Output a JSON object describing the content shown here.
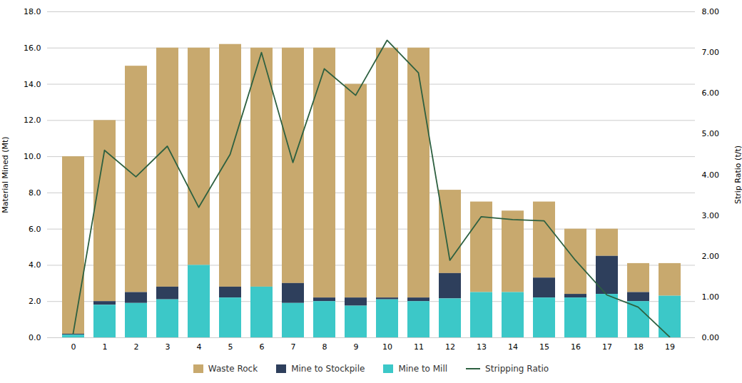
{
  "chart_data": {
    "type": "bar",
    "stacked": true,
    "grid": true,
    "legend": "bottom",
    "categories": [
      "0",
      "1",
      "2",
      "3",
      "4",
      "5",
      "6",
      "7",
      "8",
      "9",
      "10",
      "11",
      "12",
      "13",
      "14",
      "15",
      "16",
      "17",
      "18",
      "19"
    ],
    "ylabel": "Material Mined (Mt)",
    "y2label": "Strip Ratio (t/t)",
    "ylim": [
      0,
      18.0
    ],
    "yticks": [
      {
        "value": 0.0,
        "label": "0.0"
      },
      {
        "value": 2.0,
        "label": "2.0"
      },
      {
        "value": 4.0,
        "label": "4.0"
      },
      {
        "value": 6.0,
        "label": "6.0"
      },
      {
        "value": 8.0,
        "label": "8.0"
      },
      {
        "value": 10.0,
        "label": "10.0"
      },
      {
        "value": 12.0,
        "label": "12.0"
      },
      {
        "value": 14.0,
        "label": "14.0"
      },
      {
        "value": 16.0,
        "label": "16.0"
      },
      {
        "value": 18.0,
        "label": "18.0"
      }
    ],
    "y2lim": [
      0,
      8.0
    ],
    "y2ticks": [
      {
        "value": 0.0,
        "label": "0.00"
      },
      {
        "value": 1.0,
        "label": "1.00"
      },
      {
        "value": 2.0,
        "label": "2.00"
      },
      {
        "value": 3.0,
        "label": "3.00"
      },
      {
        "value": 4.0,
        "label": "4.00"
      },
      {
        "value": 5.0,
        "label": "5.00"
      },
      {
        "value": 6.0,
        "label": "6.00"
      },
      {
        "value": 7.0,
        "label": "7.00"
      },
      {
        "value": 8.0,
        "label": "8.00"
      }
    ],
    "series": [
      {
        "name": "Waste Rock",
        "color": "#C8A96E",
        "values": [
          9.8,
          10.0,
          12.5,
          13.2,
          12.0,
          13.4,
          13.2,
          13.0,
          13.8,
          11.8,
          13.8,
          13.8,
          4.6,
          5.0,
          4.5,
          4.2,
          3.6,
          1.5,
          1.6,
          1.8
        ]
      },
      {
        "name": "Mine to Stockpile",
        "color": "#2E3F5C",
        "values": [
          0.05,
          0.2,
          0.6,
          0.7,
          0.0,
          0.6,
          0.0,
          1.1,
          0.2,
          0.45,
          0.1,
          0.2,
          1.4,
          0.0,
          0.0,
          1.1,
          0.2,
          2.1,
          0.5,
          0.0
        ]
      },
      {
        "name": "Mine to Mill",
        "color": "#3CC8C8",
        "values": [
          0.15,
          1.8,
          1.9,
          2.1,
          4.0,
          2.2,
          2.8,
          1.9,
          2.0,
          1.75,
          2.1,
          2.0,
          2.15,
          2.5,
          2.5,
          2.2,
          2.2,
          2.4,
          2.0,
          2.3
        ]
      },
      {
        "name": "Stripping Ratio",
        "type": "line",
        "axis": "y2",
        "color": "#2D6040",
        "values": [
          0.1,
          4.6,
          3.95,
          4.7,
          3.2,
          4.5,
          7.0,
          4.3,
          6.6,
          5.95,
          7.3,
          6.5,
          1.9,
          2.97,
          2.9,
          2.87,
          1.9,
          1.05,
          0.75,
          0.02
        ]
      }
    ]
  }
}
